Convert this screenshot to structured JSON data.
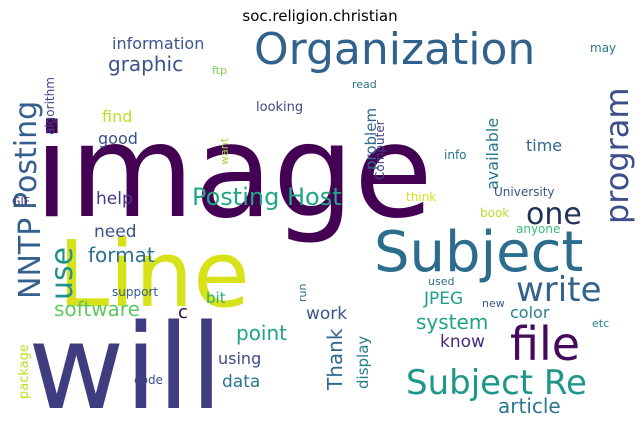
{
  "chart_data": {
    "type": "wordcloud",
    "title": "soc.religion.christian",
    "words": [
      {
        "text": "image",
        "weight": 100,
        "color": "#440154",
        "vertical": false
      },
      {
        "text": "will",
        "weight": 96,
        "color": "#3f3c80",
        "vertical": false
      },
      {
        "text": "Line",
        "weight": 75,
        "color": "#d8e219",
        "vertical": false
      },
      {
        "text": "Subject",
        "weight": 46,
        "color": "#2c6d8e",
        "vertical": false
      },
      {
        "text": "Organization",
        "weight": 38,
        "color": "#31618d",
        "vertical": false
      },
      {
        "text": "file",
        "weight": 40,
        "color": "#460a5d",
        "vertical": false
      },
      {
        "text": "Subject Re",
        "weight": 28,
        "color": "#1e978a",
        "vertical": false
      },
      {
        "text": "Posting",
        "weight": 28,
        "color": "#355f8d",
        "vertical": true
      },
      {
        "text": "NNTP",
        "weight": 28,
        "color": "#34608d",
        "vertical": true
      },
      {
        "text": "program",
        "weight": 28,
        "color": "#3c4f8a",
        "vertical": true
      },
      {
        "text": "write",
        "weight": 28,
        "color": "#33638d",
        "vertical": false
      },
      {
        "text": "one",
        "weight": 24,
        "color": "#22325c",
        "vertical": false
      },
      {
        "text": "use",
        "weight": 24,
        "color": "#21918c",
        "vertical": true
      },
      {
        "text": "Posting Host",
        "weight": 20,
        "color": "#22a784",
        "vertical": false
      },
      {
        "text": "format",
        "weight": 17,
        "color": "#2d718e",
        "vertical": false
      },
      {
        "text": "software",
        "weight": 17,
        "color": "#5ec962",
        "vertical": false
      },
      {
        "text": "system",
        "weight": 17,
        "color": "#1fa287",
        "vertical": false
      },
      {
        "text": "point",
        "weight": 17,
        "color": "#20a386",
        "vertical": false
      },
      {
        "text": "article",
        "weight": 17,
        "color": "#2a788e",
        "vertical": false
      },
      {
        "text": "graphic",
        "weight": 17,
        "color": "#3b528b",
        "vertical": false
      },
      {
        "text": "Thank",
        "weight": 17,
        "color": "#31688e",
        "vertical": true
      },
      {
        "text": "need",
        "weight": 14,
        "color": "#3b528b",
        "vertical": false
      },
      {
        "text": "help",
        "weight": 14,
        "color": "#443983",
        "vertical": false
      },
      {
        "text": "data",
        "weight": 14,
        "color": "#2b748e",
        "vertical": false
      },
      {
        "text": "JPEG",
        "weight": 14,
        "color": "#1f9e89",
        "vertical": false
      },
      {
        "text": "know",
        "weight": 14,
        "color": "#472c7a",
        "vertical": false
      },
      {
        "text": "work",
        "weight": 14,
        "color": "#3a548c",
        "vertical": false
      },
      {
        "text": "color",
        "weight": 13,
        "color": "#26828e",
        "vertical": false
      },
      {
        "text": "find",
        "weight": 13,
        "color": "#bddf26",
        "vertical": false
      },
      {
        "text": "good",
        "weight": 13,
        "color": "#3a538b",
        "vertical": false
      },
      {
        "text": "time",
        "weight": 13,
        "color": "#32658e",
        "vertical": false
      },
      {
        "text": "information",
        "weight": 13,
        "color": "#39558c",
        "vertical": false
      },
      {
        "text": "available",
        "weight": 13,
        "color": "#2a788e",
        "vertical": true
      },
      {
        "text": "using",
        "weight": 13,
        "color": "#3e4989",
        "vertical": false
      },
      {
        "text": "problem",
        "weight": 12,
        "color": "#31688e",
        "vertical": true
      },
      {
        "text": "display",
        "weight": 12,
        "color": "#297b8e",
        "vertical": true
      },
      {
        "text": "bit",
        "weight": 12,
        "color": "#29af7f",
        "vertical": false
      },
      {
        "text": "c",
        "weight": 14,
        "color": "#2a0b45",
        "vertical": false
      },
      {
        "text": "University",
        "weight": 10,
        "color": "#3b528b",
        "vertical": false
      },
      {
        "text": "looking",
        "weight": 10,
        "color": "#3e4a89",
        "vertical": false
      },
      {
        "text": "Computer",
        "weight": 10,
        "color": "#414487",
        "vertical": true
      },
      {
        "text": "info",
        "weight": 10,
        "color": "#2c728e",
        "vertical": false
      },
      {
        "text": "read",
        "weight": 9,
        "color": "#2d718e",
        "vertical": false
      },
      {
        "text": "may",
        "weight": 9,
        "color": "#2a778e",
        "vertical": false
      },
      {
        "text": "book",
        "weight": 9,
        "color": "#bade28",
        "vertical": false
      },
      {
        "text": "think",
        "weight": 9,
        "color": "#d2e21b",
        "vertical": false
      },
      {
        "text": "anyone",
        "weight": 9,
        "color": "#3aba76",
        "vertical": false
      },
      {
        "text": "used",
        "weight": 9,
        "color": "#2e6e8e",
        "vertical": false
      },
      {
        "text": "new",
        "weight": 9,
        "color": "#3a538b",
        "vertical": false
      },
      {
        "text": "etc",
        "weight": 9,
        "color": "#26828e",
        "vertical": false
      },
      {
        "text": "run",
        "weight": 9,
        "color": "#2e6f8e",
        "vertical": true
      },
      {
        "text": "support",
        "weight": 9,
        "color": "#365c8d",
        "vertical": false
      },
      {
        "text": "code",
        "weight": 9,
        "color": "#3e4a89",
        "vertical": false
      },
      {
        "text": "package",
        "weight": 10,
        "color": "#bddf26",
        "vertical": true
      },
      {
        "text": "algorithm",
        "weight": 9,
        "color": "#3f4788",
        "vertical": true
      },
      {
        "text": "GIF",
        "weight": 9,
        "color": "#443983",
        "vertical": false
      },
      {
        "text": "ftp",
        "weight": 9,
        "color": "#7ad151",
        "vertical": false
      },
      {
        "text": "want",
        "weight": 9,
        "color": "#9fda3a",
        "vertical": true
      }
    ]
  }
}
